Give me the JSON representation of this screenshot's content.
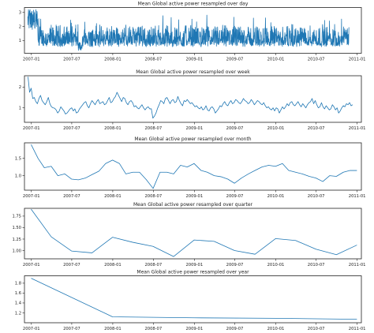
{
  "chart_data": [
    {
      "type": "line",
      "title": "Mean Global active power resampled over day",
      "xlabel": "",
      "ylabel": "",
      "xlim": [
        "2006-12-01",
        "2011-01-20"
      ],
      "ylim": [
        0.1,
        3.35
      ],
      "yticks": [
        1,
        2,
        3
      ],
      "ytick_labels": [
        "1",
        "2",
        "3"
      ],
      "xticks": [
        "2007-01-01",
        "2007-07-01",
        "2008-01-01",
        "2008-07-01",
        "2009-01-01",
        "2009-07-01",
        "2010-01-01",
        "2010-07-01",
        "2011-01-01"
      ],
      "xtick_labels": [
        "2007-01",
        "2007-07",
        "2008-01",
        "2008-07",
        "2009-01",
        "2009-07",
        "2010-01",
        "2010-07",
        "2011-01"
      ],
      "grid": false,
      "series": [
        {
          "x_start": "2006-12-16",
          "x_step_days": 1,
          "dense_noise": true,
          "values": []
        }
      ]
    },
    {
      "type": "line",
      "title": "Mean Global active power resampled over week",
      "xlabel": "",
      "ylabel": "",
      "xlim": [
        "2006-12-01",
        "2011-01-20"
      ],
      "ylim": [
        0.3,
        2.55
      ],
      "yticks": [
        1,
        2
      ],
      "ytick_labels": [
        "1",
        "2"
      ],
      "xticks": [
        "2007-01-01",
        "2007-07-01",
        "2008-01-01",
        "2008-07-01",
        "2009-01-01",
        "2009-07-01",
        "2010-01-01",
        "2010-07-01",
        "2011-01-01"
      ],
      "xtick_labels": [
        "2007-01",
        "2007-07",
        "2008-01",
        "2008-07",
        "2009-01",
        "2009-07",
        "2010-01",
        "2010-07",
        "2011-01"
      ],
      "grid": false,
      "series": [
        {
          "x_start": "2006-12-17",
          "x_step_days": 7,
          "values": [
            2.5,
            1.75,
            1.95,
            1.45,
            1.5,
            1.3,
            1.2,
            1.45,
            1.6,
            1.35,
            1.25,
            1.15,
            1.3,
            1.5,
            1.2,
            1.05,
            1.0,
            0.98,
            0.9,
            0.75,
            0.85,
            1.05,
            0.95,
            0.85,
            0.7,
            0.75,
            0.85,
            0.95,
            1.0,
            0.85,
            0.95,
            0.75,
            0.8,
            0.95,
            1.05,
            1.15,
            1.25,
            1.3,
            1.1,
            1.0,
            1.2,
            1.35,
            1.25,
            1.15,
            1.3,
            1.4,
            1.2,
            1.25,
            1.3,
            1.15,
            1.2,
            1.35,
            1.5,
            1.25,
            1.3,
            1.45,
            1.55,
            1.75,
            1.6,
            1.45,
            1.3,
            1.5,
            1.45,
            1.25,
            1.15,
            1.3,
            1.35,
            1.25,
            1.05,
            1.1,
            1.0,
            0.95,
            1.05,
            1.15,
            1.0,
            0.9,
            1.0,
            1.05,
            0.95,
            0.95,
            0.5,
            0.6,
            0.75,
            0.98,
            1.15,
            1.35,
            1.3,
            1.2,
            1.45,
            1.5,
            1.35,
            1.2,
            1.35,
            1.4,
            1.25,
            1.3,
            1.55,
            1.35,
            1.2,
            1.1,
            1.35,
            1.3,
            1.4,
            1.3,
            1.2,
            1.25,
            1.15,
            1.05,
            1.1,
            1.0,
            0.95,
            1.05,
            0.9,
            0.95,
            1.1,
            0.9,
            0.85,
            1.0,
            1.05,
            0.95,
            0.75,
            0.85,
            0.95,
            1.1,
            1.05,
            1.2,
            1.3,
            1.15,
            1.1,
            1.25,
            1.35,
            1.2,
            1.25,
            1.4,
            1.35,
            1.25,
            1.2,
            1.3,
            1.45,
            1.35,
            1.3,
            1.2,
            1.25,
            1.4,
            1.3,
            1.15,
            1.25,
            1.35,
            1.3,
            1.2,
            1.15,
            1.25,
            1.1,
            1.0,
            1.05,
            0.95,
            0.9,
            1.0,
            0.85,
            1.0,
            0.95,
            0.75,
            0.9,
            1.05,
            0.95,
            1.05,
            1.2,
            1.1,
            1.25,
            1.3,
            1.15,
            1.1,
            1.2,
            1.3,
            1.15,
            1.05,
            1.2,
            1.1,
            1.0,
            1.15,
            1.25,
            1.3,
            1.45,
            1.2,
            1.35,
            1.15,
            1.0,
            1.05,
            1.25,
            1.05,
            0.95,
            1.1,
            1.0,
            0.9,
            0.95,
            1.15,
            1.05,
            0.9,
            1.0,
            0.75,
            0.85,
            1.0,
            1.1,
            1.05,
            1.2,
            1.15,
            1.25,
            1.1,
            1.15
          ]
        }
      ]
    },
    {
      "type": "line",
      "title": "Mean Global active power resampled over month",
      "xlabel": "",
      "ylabel": "",
      "xlim": [
        "2006-12-01",
        "2011-01-20"
      ],
      "ylim": [
        0.58,
        1.95
      ],
      "yticks": [
        1.0,
        1.5
      ],
      "ytick_labels": [
        "1.0",
        "1.5"
      ],
      "xticks": [
        "2007-01-01",
        "2007-07-01",
        "2008-01-01",
        "2008-07-01",
        "2009-01-01",
        "2009-07-01",
        "2010-01-01",
        "2010-07-01",
        "2011-01-01"
      ],
      "xtick_labels": [
        "2007-01",
        "2007-07",
        "2008-01",
        "2008-07",
        "2009-01",
        "2009-07",
        "2010-01",
        "2010-07",
        "2011-01"
      ],
      "grid": false,
      "series": [
        {
          "x_start": "2006-12-31",
          "x_step_months": 1,
          "values": [
            1.9,
            1.5,
            1.23,
            1.27,
            1.0,
            1.05,
            0.9,
            0.88,
            0.93,
            1.03,
            1.13,
            1.35,
            1.45,
            1.35,
            1.05,
            1.1,
            1.1,
            0.88,
            0.63,
            1.1,
            1.1,
            1.05,
            1.3,
            1.25,
            1.35,
            1.15,
            1.1,
            1.0,
            0.97,
            0.9,
            0.78,
            0.93,
            1.05,
            1.15,
            1.25,
            1.3,
            1.27,
            1.35,
            1.15,
            1.1,
            1.05,
            0.98,
            0.93,
            0.83,
            1.0,
            0.98,
            1.1,
            1.15,
            1.15
          ]
        }
      ]
    },
    {
      "type": "line",
      "title": "Mean Global active power resampled over quarter",
      "xlabel": "",
      "ylabel": "",
      "xlim": [
        "2006-12-01",
        "2011-01-20"
      ],
      "ylim": [
        0.82,
        1.92
      ],
      "yticks": [
        1.0,
        1.25,
        1.5,
        1.75
      ],
      "ytick_labels": [
        "1.00",
        "1.25",
        "1.50",
        "1.75"
      ],
      "xticks": [
        "2007-01-01",
        "2007-07-01",
        "2008-01-01",
        "2008-07-01",
        "2009-01-01",
        "2009-07-01",
        "2010-01-01",
        "2010-07-01",
        "2011-01-01"
      ],
      "xtick_labels": [
        "2007-01",
        "2007-07",
        "2008-01",
        "2008-07",
        "2009-01",
        "2009-07",
        "2010-01",
        "2010-07",
        "2011-01"
      ],
      "grid": false,
      "series": [
        {
          "x_start": "2006-12-31",
          "x_step_months": 3,
          "values": [
            1.9,
            1.3,
            0.99,
            0.95,
            1.29,
            1.18,
            1.09,
            0.87,
            1.23,
            1.2,
            1.0,
            0.92,
            1.26,
            1.22,
            1.03,
            0.91,
            1.12
          ]
        }
      ]
    },
    {
      "type": "line",
      "title": "Mean Global active power resampled over year",
      "xlabel": "",
      "ylabel": "",
      "xlim": [
        "2006-12-01",
        "2011-01-20"
      ],
      "ylim": [
        1.0,
        1.95
      ],
      "yticks": [
        1.2,
        1.4,
        1.6,
        1.8
      ],
      "ytick_labels": [
        "1.2",
        "1.4",
        "1.6",
        "1.8"
      ],
      "xticks": [
        "2007-01-01",
        "2007-07-01",
        "2008-01-01",
        "2008-07-01",
        "2009-01-01",
        "2009-07-01",
        "2010-01-01",
        "2010-07-01",
        "2011-01-01"
      ],
      "xtick_labels": [
        "2007-01",
        "2007-07",
        "2008-01",
        "2008-07",
        "2009-01",
        "2009-07",
        "2010-01",
        "2010-07",
        "2011-01"
      ],
      "grid": false,
      "series": [
        {
          "x": [
            "2006-12-31",
            "2007-12-31",
            "2008-12-31",
            "2009-12-31",
            "2010-12-31"
          ],
          "values": [
            1.9,
            1.12,
            1.1,
            1.09,
            1.07
          ]
        }
      ]
    }
  ]
}
